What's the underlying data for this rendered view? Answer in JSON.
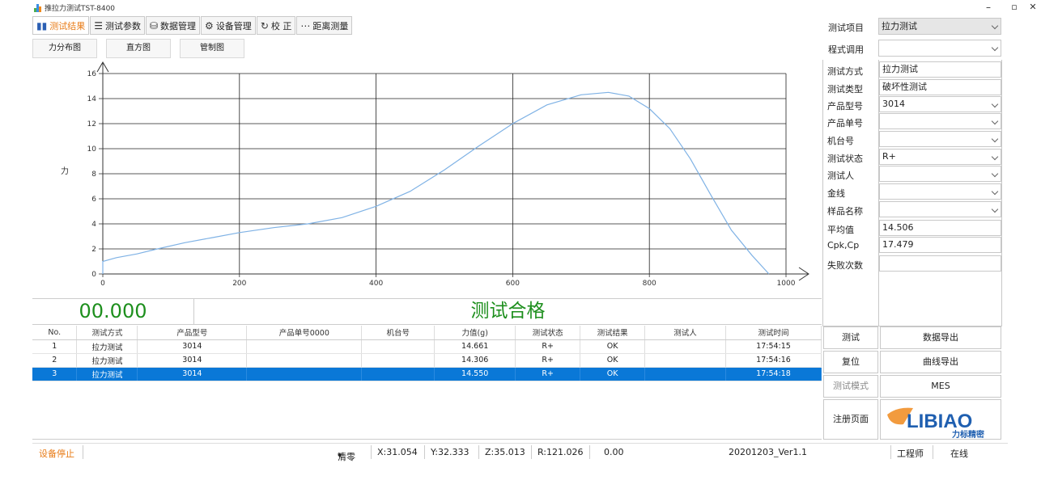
{
  "window": {
    "title": "推拉力测试TST-8400",
    "min": "–",
    "restore": "▫",
    "close": "✕"
  },
  "toolbar": [
    {
      "label": "测试结果",
      "icon": "bar-chart-icon"
    },
    {
      "label": "测试参数",
      "icon": "sliders-icon"
    },
    {
      "label": "数据管理",
      "icon": "database-icon"
    },
    {
      "label": "设备管理",
      "icon": "gears-icon"
    },
    {
      "label": "校  正",
      "icon": "refresh-icon"
    },
    {
      "label": "距离测量",
      "icon": "distance-icon"
    }
  ],
  "chart_tabs": [
    "力分布图",
    "直方图",
    "管制图"
  ],
  "chart_data": {
    "type": "line",
    "ylabel": "力",
    "xlim": [
      0,
      1000
    ],
    "ylim": [
      0,
      16
    ],
    "xticks": [
      "0",
      "200",
      "400",
      "600",
      "800",
      "1000"
    ],
    "yticks": [
      "0",
      "2",
      "4",
      "6",
      "8",
      "10",
      "12",
      "14",
      "16"
    ],
    "grid": true,
    "series": [
      {
        "color": "#7fb2e5",
        "x": [
          0,
          20,
          50,
          80,
          120,
          160,
          200,
          250,
          300,
          350,
          400,
          450,
          500,
          550,
          600,
          650,
          700,
          740,
          770,
          800,
          830,
          860,
          890,
          920,
          950,
          970,
          975
        ],
        "y": [
          1.0,
          1.3,
          1.6,
          2.0,
          2.5,
          2.9,
          3.3,
          3.7,
          4.0,
          4.5,
          5.4,
          6.6,
          8.3,
          10.2,
          12.0,
          13.5,
          14.3,
          14.5,
          14.2,
          13.2,
          11.6,
          9.2,
          6.3,
          3.5,
          1.5,
          0.3,
          0.0
        ]
      }
    ]
  },
  "status": {
    "force": "00.000",
    "verdict": "测试合格"
  },
  "table": {
    "columns": [
      "No.",
      "测试方式",
      "产品型号",
      "产品单号0000",
      "机台号",
      "力值(g)",
      "测试状态",
      "测试结果",
      "测试人",
      "测试时间"
    ],
    "rows": [
      [
        "1",
        "拉力测试",
        "3014",
        "",
        "",
        "14.661",
        "R+",
        "OK",
        "",
        "17:54:15"
      ],
      [
        "2",
        "拉力测试",
        "3014",
        "",
        "",
        "14.306",
        "R+",
        "OK",
        "",
        "17:54:16"
      ],
      [
        "3",
        "拉力测试",
        "3014",
        "",
        "",
        "14.550",
        "R+",
        "OK",
        "",
        "17:54:18"
      ]
    ]
  },
  "right_panel": {
    "test_item": {
      "label": "测试项目",
      "value": "拉力测试"
    },
    "program": {
      "label": "程式调用",
      "value": ""
    },
    "fields": [
      {
        "label": "测试方式",
        "value": "拉力测试",
        "dropdown": false
      },
      {
        "label": "测试类型",
        "value": "破坏性测试",
        "dropdown": false
      },
      {
        "label": "产品型号",
        "value": "3014",
        "dropdown": true
      },
      {
        "label": "产品单号",
        "value": "",
        "dropdown": true
      },
      {
        "label": "机台号",
        "value": "",
        "dropdown": true
      },
      {
        "label": "测试状态",
        "value": "R+",
        "dropdown": true
      },
      {
        "label": "测试人",
        "value": "",
        "dropdown": true
      },
      {
        "label": "金线",
        "value": "",
        "dropdown": true
      },
      {
        "label": "样品名称",
        "value": "",
        "dropdown": true
      },
      {
        "label": "平均值",
        "value": "14.506",
        "dropdown": false
      },
      {
        "label": "Cpk,Cp",
        "value": "17.479",
        "dropdown": false
      },
      {
        "label": "失败次数",
        "value": "",
        "dropdown": false
      }
    ],
    "buttons": {
      "test": "测试",
      "export_data": "数据导出",
      "reset": "复位",
      "export_curve": "曲线导出",
      "test_mode": "测试模式",
      "mes": "MES",
      "register": "注册页面"
    },
    "logo": {
      "text": "LIBIAO",
      "subtext": "力标精密",
      "color": "#1f5fb0",
      "accent": "#f08a1c"
    }
  },
  "statusbar": {
    "device": "设备停止",
    "zero": "清零",
    "x": "X:31.054",
    "y": "Y:32.333",
    "z": "Z:35.013",
    "r": "R:121.026",
    "value": "0.00",
    "version": "20201203_Ver1.1",
    "role": "工程师",
    "online": "在线"
  },
  "colors": {
    "accent_orange": "#e87b16",
    "pass_green": "#1d8f1d",
    "selection_blue": "#0a78d7"
  }
}
